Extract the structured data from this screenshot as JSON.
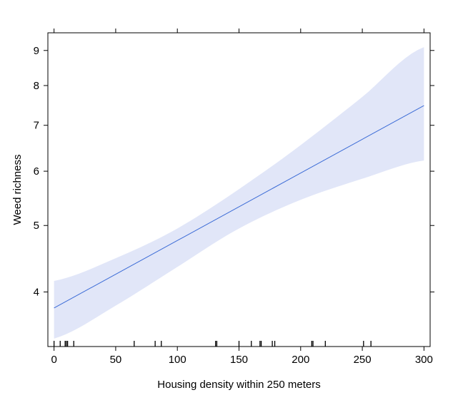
{
  "chart_data": {
    "type": "line",
    "xlabel": "Housing density within 250 meters",
    "ylabel": "Weed richness",
    "xlim": [
      -5,
      305
    ],
    "ylim": [
      3.33,
      9.55
    ],
    "y_scale": "log",
    "x_ticks": [
      0,
      50,
      100,
      150,
      200,
      250,
      300
    ],
    "x_tick_labels": [
      "0",
      "50",
      "100",
      "150",
      "200",
      "250",
      "300"
    ],
    "y_ticks": [
      4,
      5,
      6,
      7,
      8,
      9
    ],
    "y_tick_labels": [
      "4",
      "5",
      "6",
      "7",
      "8",
      "9"
    ],
    "series": [
      {
        "role": "fit",
        "x": [
          0,
          300
        ],
        "y": [
          3.79,
          7.48
        ]
      }
    ],
    "confidence_band": {
      "x": [
        0,
        50,
        100,
        150,
        200,
        250,
        300
      ],
      "lower": [
        3.42,
        3.82,
        4.35,
        4.95,
        5.45,
        5.85,
        6.22
      ],
      "upper": [
        4.15,
        4.48,
        4.95,
        5.65,
        6.55,
        7.7,
        9.1
      ]
    },
    "rug": [
      0,
      5,
      9,
      10,
      11,
      16,
      65,
      82,
      87,
      131,
      132,
      150,
      160,
      167,
      168,
      177,
      179,
      209,
      210,
      220,
      251,
      257
    ],
    "colors": {
      "line": "#3b6bd6",
      "band": "#e1e6f8",
      "axis": "#000000"
    }
  }
}
